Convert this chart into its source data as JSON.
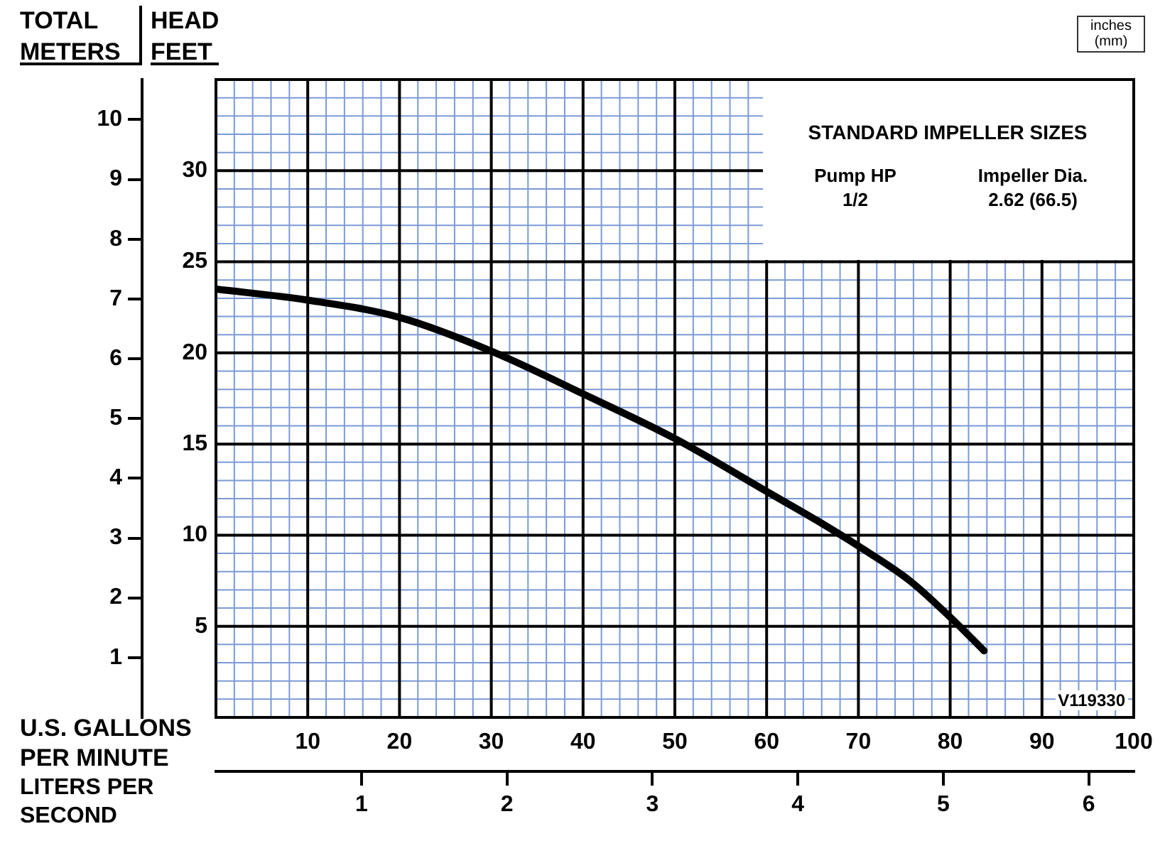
{
  "chart_data": {
    "type": "line",
    "xlabel": "U.S. GALLONS PER MINUTE",
    "x2label": "LITERS PER SECOND",
    "ylabel": "HEAD FEET",
    "y2label": "TOTAL METERS",
    "annotations": [
      "STANDARD IMPELLER SIZES",
      "Pump HP",
      "1/2",
      "Impeller Dia.",
      "2.62 (66.5)",
      "V119330",
      "inches (mm)"
    ],
    "xlim": [
      0,
      100
    ],
    "xticks": [
      10,
      20,
      30,
      40,
      50,
      60,
      70,
      80,
      90,
      100
    ],
    "x2lim": [
      0,
      6.309
    ],
    "x2ticks": [
      1,
      2,
      3,
      4,
      5,
      6
    ],
    "ylim": [
      0,
      35
    ],
    "yticks": [
      5,
      10,
      15,
      20,
      25,
      30
    ],
    "y2lim": [
      0,
      10.67
    ],
    "y2ticks": [
      1,
      2,
      3,
      4,
      5,
      6,
      7,
      8,
      9,
      10
    ],
    "grid": true,
    "legend": false,
    "marker": "none",
    "line_style": "solid",
    "series": [
      {
        "color": "#000000",
        "x": [
          0,
          10,
          20,
          30,
          40,
          50,
          60,
          65.5,
          70,
          75.6,
          80,
          83.7
        ],
        "values": [
          23.5,
          22.9,
          21.95,
          20.1,
          17.75,
          15.3,
          12.4,
          10.8,
          9.4,
          7.5,
          5.5,
          3.65
        ]
      }
    ]
  }
}
